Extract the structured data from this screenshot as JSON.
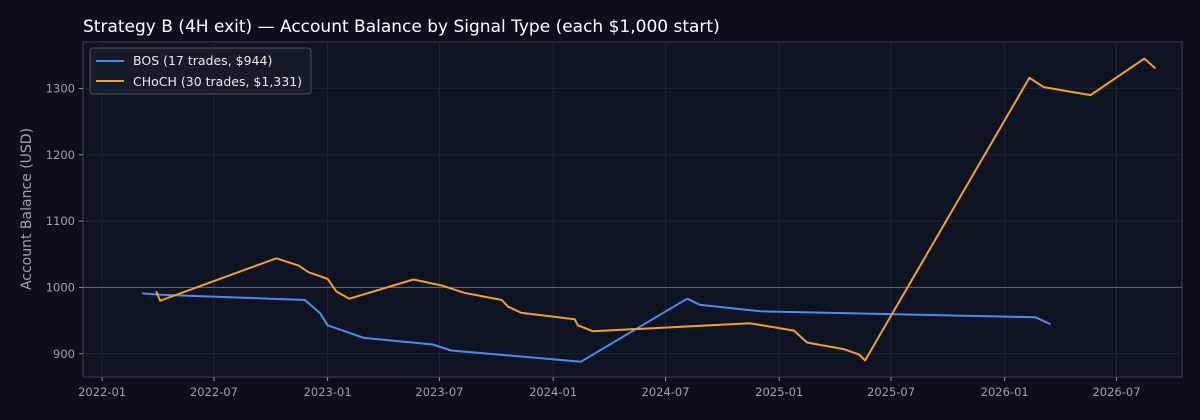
{
  "chart_data": {
    "type": "line",
    "title": "Strategy B (4H exit) — Account Balance by Signal Type (each $1,000 start)",
    "xlabel": "",
    "ylabel": "Account Balance (USD)",
    "xlim": [
      "2021-12-01",
      "2026-10-15"
    ],
    "ylim": [
      865,
      1370
    ],
    "x_ticks": [
      "2022-01",
      "2022-07",
      "2023-01",
      "2023-07",
      "2024-01",
      "2024-07",
      "2025-01",
      "2025-07",
      "2026-01",
      "2026-07"
    ],
    "y_ticks": [
      900,
      1000,
      1100,
      1200,
      1300
    ],
    "reference_line_y": 1000,
    "grid": true,
    "legend_position": "top-left",
    "series": [
      {
        "name": "BOS (17 trades, $944)",
        "color": "#4a8df0",
        "points": [
          [
            "2022-03-08",
            991
          ],
          [
            "2022-04-05",
            989
          ],
          [
            "2022-11-25",
            981
          ],
          [
            "2022-12-20",
            961
          ],
          [
            "2023-01-01",
            943
          ],
          [
            "2023-03-01",
            924
          ],
          [
            "2023-06-20",
            914
          ],
          [
            "2023-07-20",
            905
          ],
          [
            "2024-02-15",
            888
          ],
          [
            "2024-08-05",
            983
          ],
          [
            "2024-08-25",
            974
          ],
          [
            "2024-12-01",
            964
          ],
          [
            "2026-02-20",
            955
          ],
          [
            "2026-03-15",
            945
          ]
        ]
      },
      {
        "name": "CHoCH (30 trades, $1,331)",
        "color": "#f4a024",
        "points": [
          [
            "2022-03-30",
            993
          ],
          [
            "2022-04-05",
            980
          ],
          [
            "2022-10-10",
            1044
          ],
          [
            "2022-11-15",
            1033
          ],
          [
            "2022-12-01",
            1023
          ],
          [
            "2023-01-01",
            1013
          ],
          [
            "2023-01-15",
            994
          ],
          [
            "2023-02-05",
            983
          ],
          [
            "2023-05-20",
            1012
          ],
          [
            "2023-07-05",
            1003
          ],
          [
            "2023-08-10",
            992
          ],
          [
            "2023-10-10",
            981
          ],
          [
            "2023-10-20",
            971
          ],
          [
            "2023-11-10",
            962
          ],
          [
            "2024-02-05",
            952
          ],
          [
            "2024-02-10",
            943
          ],
          [
            "2024-03-05",
            934
          ],
          [
            "2024-11-15",
            946
          ],
          [
            "2025-01-25",
            935
          ],
          [
            "2025-02-15",
            917
          ],
          [
            "2025-04-15",
            907
          ],
          [
            "2025-05-10",
            899
          ],
          [
            "2025-05-20",
            890
          ],
          [
            "2026-02-10",
            1316
          ],
          [
            "2026-03-05",
            1302
          ],
          [
            "2026-05-20",
            1290
          ],
          [
            "2026-08-15",
            1345
          ],
          [
            "2026-09-01",
            1331
          ]
        ]
      }
    ]
  }
}
